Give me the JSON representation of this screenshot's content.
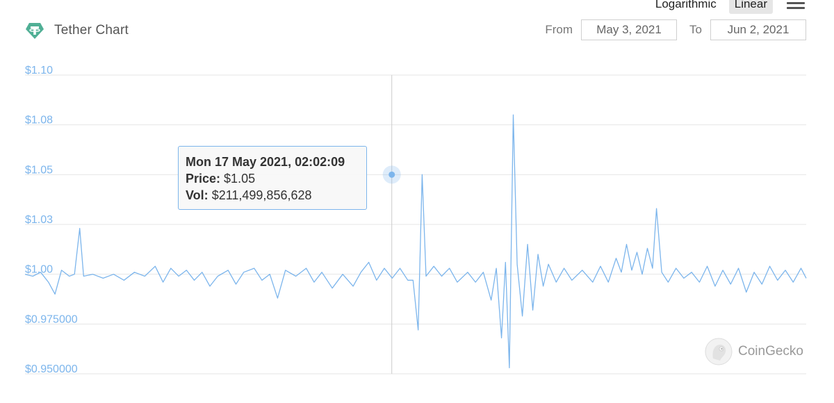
{
  "header": {
    "title": "Tether Chart",
    "scale_options": [
      "Logarithmic",
      "Linear"
    ],
    "active_scale": "Linear",
    "from_label": "From",
    "to_label": "To",
    "from_date": "May 3, 2021",
    "to_date": "Jun 2, 2021"
  },
  "tooltip": {
    "time": "Mon 17 May 2021, 02:02:09",
    "price_label": "Price:",
    "price_value": "$1.05",
    "vol_label": "Vol:",
    "vol_value": "$211,499,856,628"
  },
  "watermark": {
    "text": "CoinGecko"
  },
  "colors": {
    "line": "#7cb5ec",
    "axis_label": "#7cb5ec",
    "grid": "#e6e6e6",
    "logo": "#50af95"
  },
  "icons": {
    "logo": "tether-logo-icon",
    "menu": "hamburger-menu-icon",
    "watermark": "coingecko-gecko-icon"
  },
  "chart_data": {
    "type": "line",
    "title": "Tether Chart",
    "xlabel": "",
    "ylabel": "",
    "x_range": [
      "2021-05-03",
      "2021-06-02"
    ],
    "ylim": [
      0.95,
      1.1
    ],
    "y_ticks": [
      {
        "value": 1.1,
        "label": "$1.10"
      },
      {
        "value": 1.075,
        "label": "$1.08"
      },
      {
        "value": 1.05,
        "label": "$1.05"
      },
      {
        "value": 1.025,
        "label": "$1.03"
      },
      {
        "value": 1.0,
        "label": "$1.00"
      },
      {
        "value": 0.975,
        "label": "$0.975000"
      },
      {
        "value": 0.95,
        "label": "$0.950000"
      }
    ],
    "grid": true,
    "legend": "none",
    "highlight_point": {
      "x": "2021-05-17T02:02:09",
      "y": 1.05
    },
    "series": [
      {
        "values": [
          [
            0.0,
            1.0
          ],
          [
            0.3,
            0.999
          ],
          [
            0.6,
            1.001
          ],
          [
            0.9,
            0.996
          ],
          [
            1.15,
            0.99
          ],
          [
            1.4,
            1.002
          ],
          [
            1.7,
            0.999
          ],
          [
            1.9,
            1.0
          ],
          [
            2.1,
            1.023
          ],
          [
            2.25,
            0.999
          ],
          [
            2.6,
            1.0
          ],
          [
            3.0,
            0.998
          ],
          [
            3.4,
            1.0
          ],
          [
            3.8,
            0.997
          ],
          [
            4.2,
            1.001
          ],
          [
            4.6,
            0.999
          ],
          [
            5.0,
            1.004
          ],
          [
            5.3,
            0.996
          ],
          [
            5.6,
            1.003
          ],
          [
            5.9,
            0.999
          ],
          [
            6.2,
            1.002
          ],
          [
            6.5,
            0.997
          ],
          [
            6.8,
            1.001
          ],
          [
            7.1,
            0.994
          ],
          [
            7.4,
            0.999
          ],
          [
            7.8,
            1.002
          ],
          [
            8.1,
            0.995
          ],
          [
            8.4,
            1.001
          ],
          [
            8.8,
            1.003
          ],
          [
            9.1,
            0.997
          ],
          [
            9.4,
            1.0
          ],
          [
            9.7,
            0.988
          ],
          [
            10.0,
            1.002
          ],
          [
            10.4,
            0.999
          ],
          [
            10.8,
            1.003
          ],
          [
            11.1,
            0.996
          ],
          [
            11.4,
            1.001
          ],
          [
            11.8,
            0.993
          ],
          [
            12.2,
            1.0
          ],
          [
            12.6,
            0.994
          ],
          [
            12.9,
            1.001
          ],
          [
            13.2,
            1.006
          ],
          [
            13.5,
            0.997
          ],
          [
            13.8,
            1.003
          ],
          [
            14.1,
            0.998
          ],
          [
            14.4,
            1.003
          ],
          [
            14.7,
            0.997
          ],
          [
            14.9,
            0.997
          ],
          [
            15.1,
            0.972
          ],
          [
            15.25,
            1.05
          ],
          [
            15.4,
            0.999
          ],
          [
            15.7,
            1.004
          ],
          [
            16.0,
            0.999
          ],
          [
            16.3,
            1.003
          ],
          [
            16.6,
            0.996
          ],
          [
            17.0,
            1.001
          ],
          [
            17.3,
            0.996
          ],
          [
            17.6,
            1.001
          ],
          [
            17.9,
            0.987
          ],
          [
            18.1,
            1.003
          ],
          [
            18.3,
            0.968
          ],
          [
            18.45,
            1.006
          ],
          [
            18.6,
            0.953
          ],
          [
            18.75,
            1.08
          ],
          [
            18.9,
            1.005
          ],
          [
            19.1,
            0.979
          ],
          [
            19.3,
            1.015
          ],
          [
            19.5,
            0.982
          ],
          [
            19.7,
            1.01
          ],
          [
            19.9,
            0.994
          ],
          [
            20.1,
            1.005
          ],
          [
            20.4,
            0.996
          ],
          [
            20.7,
            1.003
          ],
          [
            21.0,
            0.997
          ],
          [
            21.4,
            1.002
          ],
          [
            21.8,
            0.996
          ],
          [
            22.1,
            1.004
          ],
          [
            22.4,
            0.996
          ],
          [
            22.7,
            1.008
          ],
          [
            22.9,
            1.001
          ],
          [
            23.1,
            1.015
          ],
          [
            23.3,
            1.002
          ],
          [
            23.5,
            1.011
          ],
          [
            23.7,
            1.0
          ],
          [
            23.9,
            1.013
          ],
          [
            24.1,
            1.003
          ],
          [
            24.25,
            1.033
          ],
          [
            24.45,
            1.001
          ],
          [
            24.7,
            0.996
          ],
          [
            25.0,
            1.003
          ],
          [
            25.3,
            0.998
          ],
          [
            25.6,
            1.001
          ],
          [
            25.9,
            0.996
          ],
          [
            26.2,
            1.004
          ],
          [
            26.5,
            0.994
          ],
          [
            26.8,
            1.002
          ],
          [
            27.1,
            0.995
          ],
          [
            27.4,
            1.003
          ],
          [
            27.7,
            0.991
          ],
          [
            28.0,
            1.001
          ],
          [
            28.3,
            0.995
          ],
          [
            28.6,
            1.004
          ],
          [
            28.9,
            0.997
          ],
          [
            29.2,
            1.002
          ],
          [
            29.5,
            0.996
          ],
          [
            29.8,
            1.003
          ],
          [
            30.0,
            0.998
          ]
        ]
      }
    ]
  }
}
